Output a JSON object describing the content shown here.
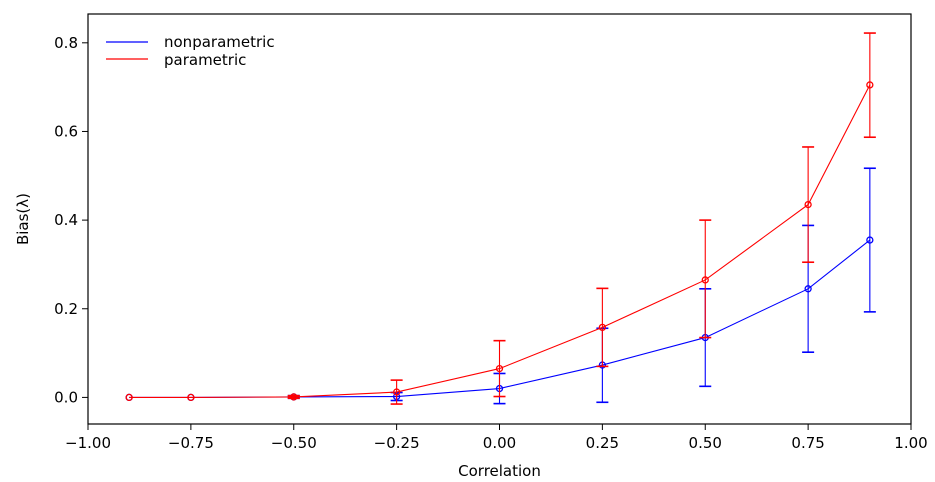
{
  "chart_data": {
    "type": "line",
    "xlabel": "Correlation",
    "ylabel_prefix": "Bias(",
    "ylabel_symbol": "λ",
    "ylabel_suffix": ")",
    "xlim": [
      -1.0,
      1.0
    ],
    "ylim": [
      -0.06,
      0.865
    ],
    "xticks": [
      -1.0,
      -0.75,
      -0.5,
      -0.25,
      0.0,
      0.25,
      0.5,
      0.75,
      1.0
    ],
    "xtick_labels": [
      "−1.00",
      "−0.75",
      "−0.50",
      "−0.25",
      "0.00",
      "0.25",
      "0.50",
      "0.75",
      "1.00"
    ],
    "yticks": [
      0.0,
      0.2,
      0.4,
      0.6,
      0.8
    ],
    "ytick_labels": [
      "0.0",
      "0.2",
      "0.4",
      "0.6",
      "0.8"
    ],
    "grid": false,
    "legend_position": "top-left",
    "x": [
      -0.9,
      -0.75,
      -0.5,
      -0.25,
      0.0,
      0.25,
      0.5,
      0.75,
      0.9
    ],
    "series": [
      {
        "name": "nonparametric",
        "color": "#0000ff",
        "values": [
          0.0,
          0.0,
          0.001,
          0.002,
          0.02,
          0.073,
          0.135,
          0.245,
          0.355
        ],
        "err_low": [
          0.0,
          0.0,
          -0.002,
          -0.007,
          -0.014,
          -0.011,
          0.025,
          0.102,
          0.193
        ],
        "err_high": [
          0.0,
          0.0,
          0.004,
          0.011,
          0.054,
          0.156,
          0.245,
          0.388,
          0.517
        ]
      },
      {
        "name": "parametric",
        "color": "#ff0000",
        "values": [
          0.0,
          0.0,
          0.001,
          0.012,
          0.065,
          0.158,
          0.265,
          0.435,
          0.705
        ],
        "err_low": [
          0.0,
          0.0,
          -0.002,
          -0.015,
          0.002,
          0.07,
          0.135,
          0.305,
          0.587
        ],
        "err_high": [
          0.0,
          0.0,
          0.004,
          0.039,
          0.128,
          0.246,
          0.4,
          0.565,
          0.822
        ]
      }
    ]
  }
}
